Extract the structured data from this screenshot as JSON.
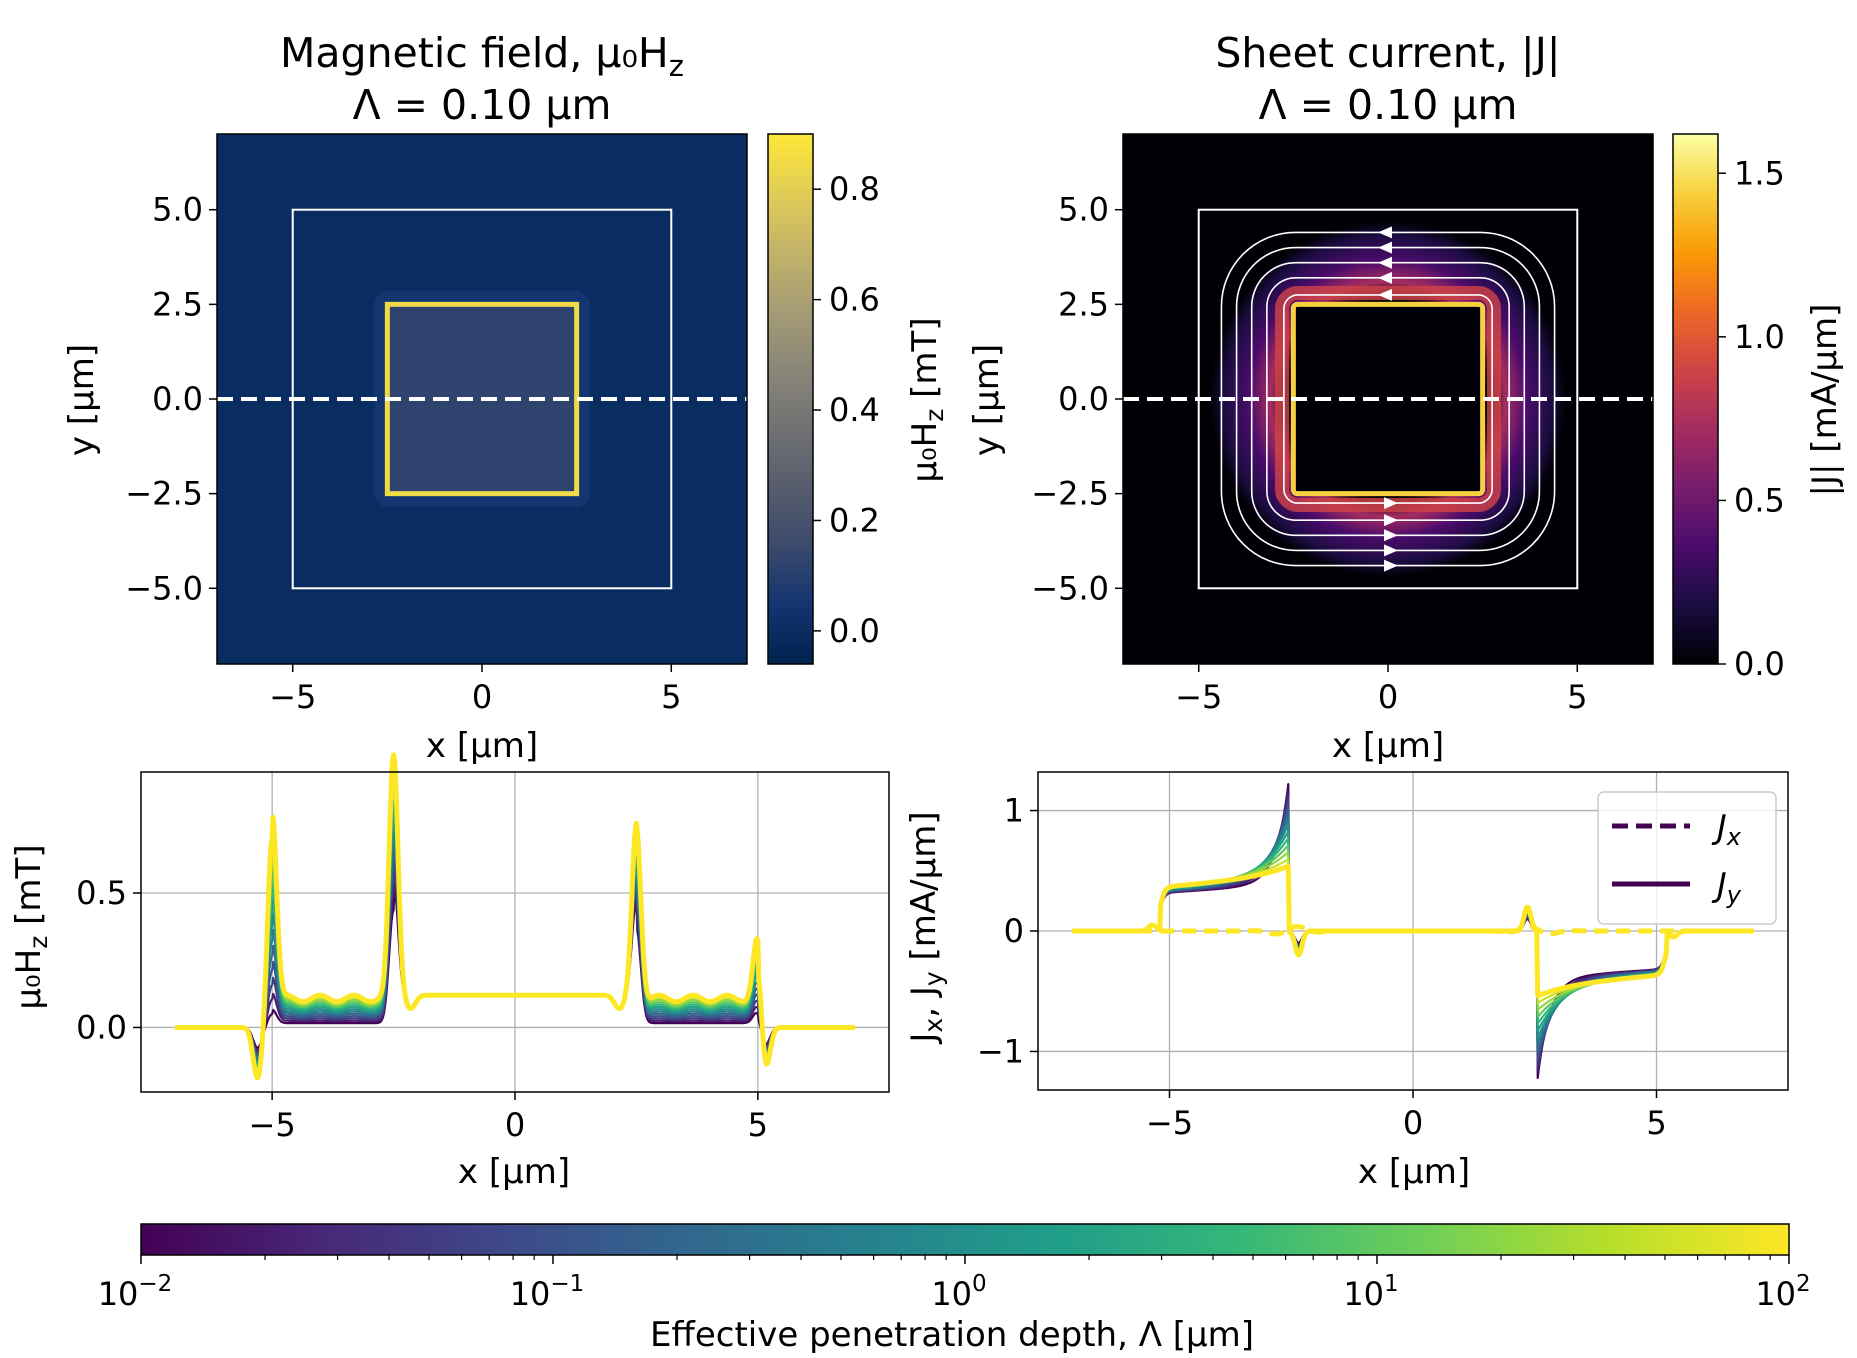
{
  "chart_data": [
    {
      "type": "heatmap",
      "title_line1": "Magnetic field, μ₀H",
      "title_line1_sub": "z",
      "title_line2": "Λ = 0.10 μm",
      "xlabel": "x [µm]",
      "ylabel": "y [µm]",
      "xlim": [
        -7,
        7
      ],
      "ylim": [
        -7,
        7
      ],
      "xticks": [
        -5,
        0,
        5
      ],
      "xtick_labels": [
        "−5",
        "0",
        "5"
      ],
      "yticks": [
        -5.0,
        -2.5,
        0.0,
        2.5,
        5.0
      ],
      "ytick_labels": [
        "−5.0",
        "−2.5",
        "0.0",
        "2.5",
        "5.0"
      ],
      "outer_square": [
        -5,
        5
      ],
      "hole_square": [
        -2.5,
        2.5
      ],
      "cut_line_y": 0,
      "colorbar": {
        "label": "μ₀H",
        "label_sub": "z",
        "label_suffix": " [mT]",
        "range": [
          -0.06,
          0.9
        ],
        "ticks": [
          0.0,
          0.2,
          0.4,
          0.6,
          0.8
        ],
        "tick_labels": [
          "0.0",
          "0.2",
          "0.4",
          "0.6",
          "0.8"
        ],
        "colormap": "cividis",
        "colors": [
          "#00224e",
          "#123570",
          "#3b496c",
          "#575d6d",
          "#707173",
          "#8a8678",
          "#a59c74",
          "#c3b369",
          "#e1cc55",
          "#fee838"
        ]
      },
      "values": {
        "outside": 0.0,
        "film": 0.0,
        "hole": 0.12,
        "hole_edge": 0.85
      }
    },
    {
      "type": "heatmap",
      "title_line1": "Sheet current, |J|",
      "title_line2": "Λ = 0.10 μm",
      "xlabel": "x [µm]",
      "ylabel": "y [µm]",
      "xlim": [
        -7,
        7
      ],
      "ylim": [
        -7,
        7
      ],
      "xticks": [
        -5,
        0,
        5
      ],
      "xtick_labels": [
        "−5",
        "0",
        "5"
      ],
      "yticks": [
        -5.0,
        -2.5,
        0.0,
        2.5,
        5.0
      ],
      "ytick_labels": [
        "−5.0",
        "−2.5",
        "0.0",
        "2.5",
        "5.0"
      ],
      "outer_square": [
        -5,
        5
      ],
      "hole_square": [
        -2.5,
        2.5
      ],
      "cut_line_y": 0,
      "streamlines": [
        2.75,
        3.2,
        3.6,
        4.0,
        4.4
      ],
      "colorbar": {
        "label": "|J| [mA/µm]",
        "range": [
          0,
          1.62
        ],
        "ticks": [
          0.0,
          0.5,
          1.0,
          1.5
        ],
        "tick_labels": [
          "0.0",
          "0.5",
          "1.0",
          "1.5"
        ],
        "colormap": "inferno",
        "colors": [
          "#000004",
          "#1b0c41",
          "#4a0c6b",
          "#781c6d",
          "#a52c60",
          "#cf4446",
          "#ed6925",
          "#fb9b06",
          "#f7d13d",
          "#fcffa4"
        ]
      }
    },
    {
      "type": "line",
      "xlabel": "x [μm]",
      "ylabel": "μ₀H",
      "ylabel_sub": "z",
      "ylabel_suffix": " [mT]",
      "xlim": [
        -7.7,
        7.7
      ],
      "ylim": [
        -0.24,
        0.95
      ],
      "xticks": [
        -5,
        0,
        5
      ],
      "xtick_labels": [
        "−5",
        "0",
        "5"
      ],
      "yticks": [
        0.0,
        0.5
      ],
      "ytick_labels": [
        "0.0",
        "0.5"
      ],
      "grid": true,
      "lambda_values": [
        0.01,
        0.02,
        0.05,
        0.1,
        0.2,
        0.5,
        1,
        2,
        5,
        10,
        20,
        50,
        100
      ],
      "series_peak_scale": [
        {
          "x": -5.0,
          "values_min": 0.05,
          "values_max": 0.7
        },
        {
          "x": -2.5,
          "values_min": 0.42,
          "values_max": 0.9
        },
        {
          "x": 2.5,
          "values_min": 0.35,
          "values_max": 0.64
        },
        {
          "x": 5.0,
          "values_min": 0.05,
          "values_max": 0.25
        }
      ],
      "hole_level": 0.12,
      "dips": [
        {
          "x": -5.3,
          "y": -0.19
        },
        {
          "x": 5.15,
          "y": -0.18
        }
      ]
    },
    {
      "type": "line",
      "xlabel": "x [μm]",
      "ylabel": "J",
      "ylabel_mid": ", J",
      "ylabel_sub_x": "x",
      "ylabel_sub_y": "y",
      "ylabel_suffix": " [mA/μm]",
      "xlim": [
        -7.7,
        7.7
      ],
      "ylim": [
        -1.32,
        1.32
      ],
      "xticks": [
        -5,
        0,
        5
      ],
      "xtick_labels": [
        "−5",
        "0",
        "5"
      ],
      "yticks": [
        -1,
        0,
        1
      ],
      "ytick_labels": [
        "−1",
        "0",
        "1"
      ],
      "grid": true,
      "legend": {
        "position": "top-right",
        "entries": [
          {
            "label": "J",
            "sub": "x",
            "style": "dashed"
          },
          {
            "label": "J",
            "sub": "y",
            "style": "solid"
          }
        ]
      },
      "jy_plateau": {
        "min": 0.35,
        "max": 0.4
      },
      "jy_edge_peak": {
        "min": 0.5,
        "max": 1.22
      }
    },
    {
      "type": "colorbar",
      "label": "Effective penetration depth, Λ [µm]",
      "scale": "log",
      "range": [
        0.01,
        100
      ],
      "ticks": [
        {
          "base": "10",
          "exp": "−2",
          "value": 0.01
        },
        {
          "base": "10",
          "exp": "−1",
          "value": 0.1
        },
        {
          "base": "10",
          "exp": "0",
          "value": 1
        },
        {
          "base": "10",
          "exp": "1",
          "value": 10
        },
        {
          "base": "10",
          "exp": "2",
          "value": 100
        }
      ],
      "colormap": "viridis",
      "colors": [
        "#440154",
        "#482878",
        "#3e4989",
        "#31688e",
        "#26828e",
        "#1f9e89",
        "#35b779",
        "#6ece58",
        "#b5de2b",
        "#fde725"
      ]
    }
  ]
}
